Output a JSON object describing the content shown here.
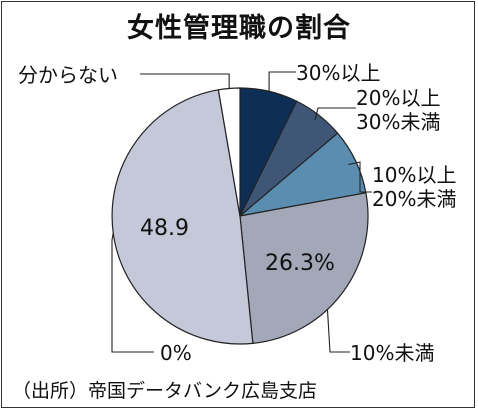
{
  "title": "女性管理職の割合",
  "source": "（出所）帝国データバンク広島支店",
  "chart_data": {
    "type": "pie",
    "title": "女性管理職の割合",
    "slices": [
      {
        "label": "30%以上",
        "value": 7.3,
        "color": "#0e2f55"
      },
      {
        "label": "20%以上30%未満",
        "value": 6.5,
        "color": "#3f5676"
      },
      {
        "label": "10%以上20%未満",
        "value": 8.3,
        "color": "#5a8db0"
      },
      {
        "label": "10%未満",
        "value": 26.3,
        "color": "#a3a8b8"
      },
      {
        "label": "0%",
        "value": 48.9,
        "color": "#c5c8d8"
      },
      {
        "label": "分からない",
        "value": 2.7,
        "color": "#ffffff"
      }
    ],
    "data_labels": [
      "26.3%",
      "48.9"
    ],
    "legend_placement": "outside labels with leader lines"
  }
}
